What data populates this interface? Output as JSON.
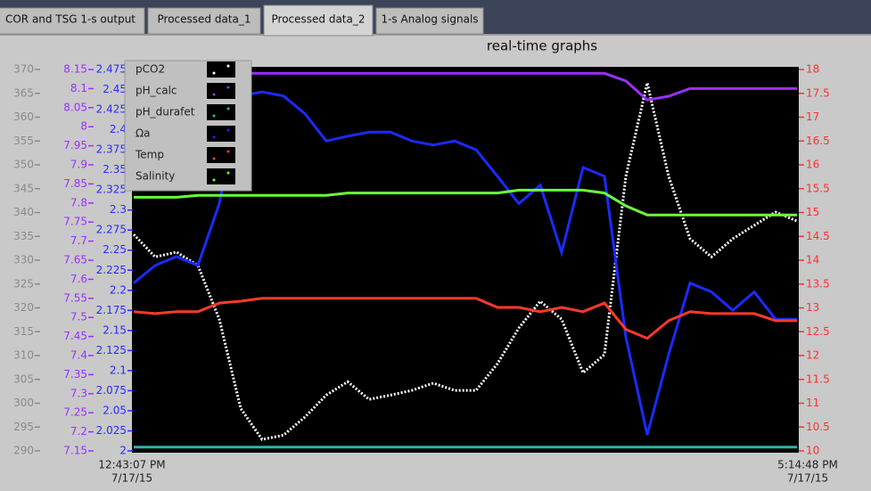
{
  "tabs": [
    "COR and TSG 1-s output",
    "Processed data_1",
    "Processed data_2",
    "1-s Analog signals"
  ],
  "active_tab": 2,
  "chart_data": {
    "type": "line",
    "title": "real-time graphs",
    "x_labels": [
      {
        "time": "12:43:07 PM",
        "date": "7/17/15"
      },
      {
        "time": "5:14:48 PM",
        "date": "7/17/15"
      }
    ],
    "ylim": [
      290,
      370
    ],
    "yticks": [
      290,
      295,
      300,
      305,
      310,
      315,
      320,
      325,
      330,
      335,
      340,
      345,
      350,
      355,
      360,
      365,
      370
    ],
    "y2lim": [
      7.15,
      8.15
    ],
    "y2ticks": [
      7.15,
      7.2,
      7.25,
      7.3,
      7.35,
      7.4,
      7.45,
      7.5,
      7.55,
      7.6,
      7.65,
      7.7,
      7.75,
      7.8,
      7.85,
      7.9,
      7.95,
      8,
      8.05,
      8.1,
      8.15
    ],
    "y3lim": [
      2,
      2.475
    ],
    "y3ticks": [
      2,
      2.025,
      2.05,
      2.075,
      2.1,
      2.125,
      2.15,
      2.175,
      2.2,
      2.225,
      2.25,
      2.275,
      2.3,
      2.325,
      2.35,
      2.375,
      2.4,
      2.425,
      2.45,
      2.475
    ],
    "y4lim": [
      10,
      18
    ],
    "y4ticks": [
      10,
      10.5,
      11,
      11.5,
      12,
      12.5,
      13,
      13.5,
      14,
      14.5,
      15,
      15.5,
      16,
      16.5,
      17,
      17.5,
      18
    ],
    "axis_colors": {
      "y": "#8a8a8a",
      "y2": "#9b30ff",
      "y3": "#2a2aff",
      "y4": "#ff3030"
    },
    "series": [
      {
        "name": "pCO2",
        "color": "#ffffff",
        "axis": "y",
        "values": [
          335.4,
          330.7,
          331.7,
          328.9,
          317.6,
          298.9,
          292.4,
          293.3,
          297.1,
          301.7,
          304.5,
          300.8,
          301.7,
          302.7,
          304.2,
          302.7,
          302.7,
          308.3,
          315.8,
          321.4,
          317.6,
          306.4,
          310.2,
          347.6,
          367.2,
          347.6,
          334.5,
          330.7,
          334.5,
          337.3,
          340.1,
          338.2
        ]
      },
      {
        "name": "pH_calc",
        "color": "#9b30ff",
        "axis": "y2",
        "values": [
          8.14,
          8.14,
          8.14,
          8.14,
          8.14,
          8.14,
          8.14,
          8.14,
          8.14,
          8.14,
          8.14,
          8.14,
          8.14,
          8.14,
          8.14,
          8.14,
          8.14,
          8.14,
          8.14,
          8.14,
          8.14,
          8.14,
          8.14,
          8.12,
          8.07,
          8.08,
          8.1,
          8.1,
          8.1,
          8.1,
          8.1,
          8.1
        ]
      },
      {
        "name": "pH_durafet",
        "color": "#2fb5a8",
        "axis": "y2",
        "values": [
          7.16,
          7.16,
          7.16,
          7.16,
          7.16,
          7.16,
          7.16,
          7.16,
          7.16,
          7.16,
          7.16,
          7.16,
          7.16,
          7.16,
          7.16,
          7.16,
          7.16,
          7.16,
          7.16,
          7.16,
          7.16,
          7.16,
          7.16,
          7.16,
          7.16,
          7.16,
          7.16,
          7.16,
          7.16,
          7.16,
          7.16,
          7.16
        ]
      },
      {
        "name": "Ωa",
        "color": "#1a2bff",
        "axis": "y3",
        "values": [
          2.209,
          2.231,
          2.242,
          2.231,
          2.308,
          2.442,
          2.447,
          2.442,
          2.42,
          2.386,
          2.392,
          2.397,
          2.397,
          2.386,
          2.381,
          2.386,
          2.375,
          2.342,
          2.308,
          2.331,
          2.247,
          2.353,
          2.342,
          2.142,
          2.02,
          2.12,
          2.209,
          2.198,
          2.175,
          2.198,
          2.164,
          2.164
        ]
      },
      {
        "name": "Temp",
        "color": "#ff3a2a",
        "axis": "y4",
        "values": [
          12.92,
          12.88,
          12.92,
          12.92,
          13.1,
          13.14,
          13.2,
          13.2,
          13.2,
          13.2,
          13.2,
          13.2,
          13.2,
          13.2,
          13.2,
          13.2,
          13.2,
          13.01,
          13.01,
          12.92,
          13.01,
          12.92,
          13.1,
          12.55,
          12.36,
          12.73,
          12.92,
          12.88,
          12.88,
          12.88,
          12.73,
          12.73
        ]
      },
      {
        "name": "Salinity",
        "color": "#6cff3a",
        "axis": "y4",
        "values": [
          15.32,
          15.32,
          15.32,
          15.36,
          15.36,
          15.36,
          15.36,
          15.36,
          15.36,
          15.36,
          15.41,
          15.41,
          15.41,
          15.41,
          15.41,
          15.41,
          15.41,
          15.41,
          15.47,
          15.47,
          15.47,
          15.47,
          15.41,
          15.14,
          14.95,
          14.95,
          14.95,
          14.95,
          14.95,
          14.95,
          14.95,
          14.95
        ]
      }
    ]
  }
}
